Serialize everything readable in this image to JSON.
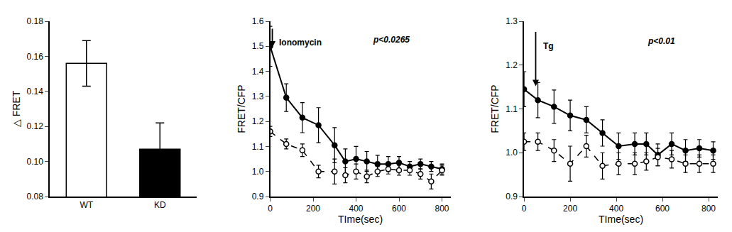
{
  "chart_data": [
    {
      "type": "bar",
      "categories": [
        "WT",
        "KD"
      ],
      "values": [
        0.156,
        0.107
      ],
      "errors": [
        0.013,
        0.015
      ],
      "colors": [
        "white",
        "black"
      ],
      "ylabel": "△ FRET",
      "ylim": [
        0.08,
        0.18
      ],
      "yticks": [
        0.08,
        {
          "value": 0.1,
          "label": "0.10"
        },
        0.12,
        0.14,
        0.16,
        0.18
      ],
      "grid": false
    },
    {
      "type": "line",
      "xlabel": "TIme(sec)",
      "ylabel": "FRET/CFP",
      "x": [
        0,
        75,
        150,
        225,
        300,
        350,
        400,
        450,
        500,
        550,
        600,
        650,
        700,
        750,
        800
      ],
      "series": [
        {
          "color": "black",
          "marker": "filled",
          "line_style": "solid",
          "values": [
            1.5,
            1.295,
            1.215,
            1.185,
            1.105,
            1.04,
            1.05,
            1.04,
            1.03,
            1.03,
            1.035,
            1.02,
            1.03,
            1.02,
            1.01
          ],
          "errors": [
            0.08,
            0.055,
            0.06,
            0.07,
            0.07,
            0.05,
            0.05,
            0.04,
            0.035,
            0.03,
            0.025,
            0.02,
            0.02,
            0.02,
            0.02
          ]
        },
        {
          "color": "black",
          "marker": "open",
          "line_style": "dashed",
          "values": [
            1.16,
            1.11,
            1.085,
            1.0,
            1.0,
            0.985,
            1.0,
            0.98,
            1.0,
            1.01,
            1.005,
            1.005,
            0.99,
            0.96,
            1.005
          ],
          "errors": [
            0.02,
            0.02,
            0.025,
            0.025,
            0.05,
            0.03,
            0.03,
            0.025,
            0.02,
            0.02,
            0.02,
            0.02,
            0.02,
            0.03,
            0.02
          ]
        }
      ],
      "xlim": [
        0,
        840
      ],
      "xticks": [
        0,
        200,
        400,
        600,
        800
      ],
      "ylim": [
        0.9,
        1.6
      ],
      "yticks": [
        0.9,
        {
          "value": 1.0,
          "label": "1.0"
        },
        1.1,
        1.2,
        1.3,
        1.4,
        1.5,
        1.6
      ],
      "annotations": [
        "Ionomycin",
        "p<0.0265"
      ],
      "grid": false
    },
    {
      "type": "line",
      "xlabel": "TIme(sec)",
      "ylabel": "FRET/CFP",
      "x": [
        0,
        60,
        130,
        200,
        270,
        340,
        410,
        480,
        530,
        580,
        640,
        700,
        760,
        820
      ],
      "series": [
        {
          "color": "black",
          "marker": "filled",
          "line_style": "solid",
          "values": [
            1.145,
            1.12,
            1.105,
            1.085,
            1.075,
            1.045,
            1.015,
            1.02,
            1.02,
            0.995,
            1.02,
            1.005,
            1.01,
            1.005
          ],
          "errors": [
            0.04,
            0.04,
            0.038,
            0.035,
            0.03,
            0.03,
            0.03,
            0.025,
            0.025,
            0.025,
            0.025,
            0.025,
            0.02,
            0.02
          ]
        },
        {
          "color": "black",
          "marker": "open",
          "line_style": "dashed",
          "values": [
            1.025,
            1.025,
            1.005,
            0.975,
            1.015,
            0.97,
            0.975,
            0.975,
            0.98,
            0.99,
            0.985,
            0.975,
            0.975,
            0.975
          ],
          "errors": [
            0.02,
            0.02,
            0.025,
            0.04,
            0.025,
            0.03,
            0.025,
            0.025,
            0.02,
            0.02,
            0.02,
            0.02,
            0.02,
            0.02
          ]
        }
      ],
      "xlim": [
        0,
        840
      ],
      "xticks": [
        0,
        200,
        400,
        600,
        800
      ],
      "ylim": [
        0.9,
        1.3
      ],
      "yticks": [
        0.9,
        {
          "value": 1.0,
          "label": "1.0"
        },
        1.1,
        1.2,
        1.3
      ],
      "annotations": [
        "Tg",
        "p<0.01"
      ],
      "grid": false
    }
  ]
}
